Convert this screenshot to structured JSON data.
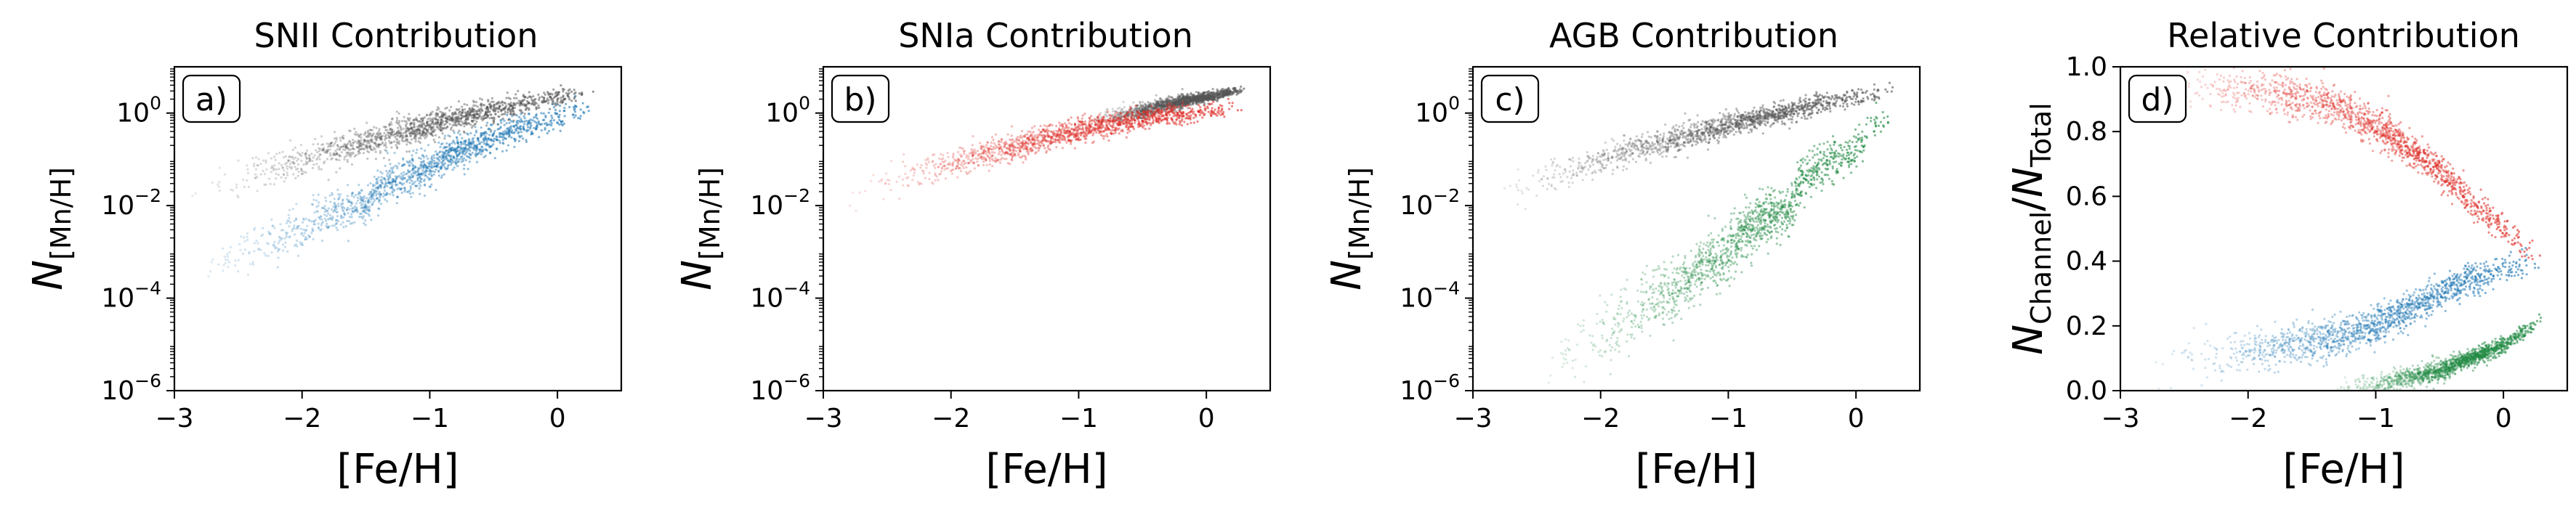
{
  "figure": {
    "panels": [
      {
        "title": "SNII Contribution",
        "label": "a)"
      },
      {
        "title": "SNIa Contribution",
        "label": "b)"
      },
      {
        "title": "AGB Contribution",
        "label": "c)"
      },
      {
        "title": "Relative Contribution",
        "label": "d)"
      }
    ]
  },
  "chart_data": [
    {
      "type": "scatter",
      "title": "SNII Contribution",
      "panel_label": "a)",
      "xlabel": "[Fe/H]",
      "ylabel_tex": {
        "base": "N",
        "sub": "[Mn/H]"
      },
      "xlim": [
        -3,
        0.5
      ],
      "ylim": [
        1e-06,
        10
      ],
      "yscale": "log",
      "xticks": [
        -3,
        -2,
        -1,
        0
      ],
      "xtick_labels": [
        "−3",
        "−2",
        "−1",
        "0"
      ],
      "yticks": [
        1e-06,
        0.0001,
        0.01,
        1
      ],
      "ytick_labels": [
        {
          "base": "10",
          "exp": "−6"
        },
        {
          "base": "10",
          "exp": "−4"
        },
        {
          "base": "10",
          "exp": "−2"
        },
        {
          "base": "10",
          "exp": "0"
        }
      ],
      "series": [
        {
          "role": "total",
          "color": "#555555",
          "x": [
            -2.95,
            -2.5,
            -2.0,
            -1.5,
            -1.0,
            -0.5,
            0.0,
            0.3
          ],
          "y": [
            0.015,
            0.035,
            0.09,
            0.22,
            0.5,
            1.1,
            2.2,
            3.2
          ],
          "scatter": 0.22
        },
        {
          "role": "channel",
          "color": "#1f77b4",
          "x": [
            -2.95,
            -2.5,
            -2.0,
            -1.5,
            -1.0,
            -0.5,
            0.0,
            0.3
          ],
          "y": [
            0.0003,
            0.0008,
            0.003,
            0.011,
            0.06,
            0.25,
            0.8,
            1.3
          ],
          "scatter": 0.3
        }
      ]
    },
    {
      "type": "scatter",
      "title": "SNIa Contribution",
      "panel_label": "b)",
      "xlabel": "[Fe/H]",
      "ylabel_tex": {
        "base": "N",
        "sub": "[Mn/H]"
      },
      "xlim": [
        -3,
        0.5
      ],
      "ylim": [
        1e-06,
        10
      ],
      "yscale": "log",
      "xticks": [
        -3,
        -2,
        -1,
        0
      ],
      "xtick_labels": [
        "−3",
        "−2",
        "−1",
        "0"
      ],
      "yticks": [
        1e-06,
        0.0001,
        0.01,
        1
      ],
      "ytick_labels": [
        {
          "base": "10",
          "exp": "−6"
        },
        {
          "base": "10",
          "exp": "−4"
        },
        {
          "base": "10",
          "exp": "−2"
        },
        {
          "base": "10",
          "exp": "0"
        }
      ],
      "series": [
        {
          "role": "total",
          "color": "#555555",
          "x": [
            -1.0,
            -0.5,
            0.0,
            0.3
          ],
          "y": [
            0.5,
            1.1,
            2.2,
            3.2
          ],
          "scatter": 0.1
        },
        {
          "role": "channel",
          "color": "#de2d26",
          "x": [
            -2.95,
            -2.5,
            -2.0,
            -1.5,
            -1.0,
            -0.5,
            0.0,
            0.3
          ],
          "y": [
            0.012,
            0.03,
            0.075,
            0.18,
            0.42,
            0.75,
            1.1,
            1.4
          ],
          "scatter": 0.2
        }
      ]
    },
    {
      "type": "scatter",
      "title": "AGB Contribution",
      "panel_label": "c)",
      "xlabel": "[Fe/H]",
      "ylabel_tex": {
        "base": "N",
        "sub": "[Mn/H]"
      },
      "xlim": [
        -3,
        0.5
      ],
      "ylim": [
        1e-06,
        10
      ],
      "yscale": "log",
      "xticks": [
        -3,
        -2,
        -1,
        0
      ],
      "xtick_labels": [
        "−3",
        "−2",
        "−1",
        "0"
      ],
      "yticks": [
        1e-06,
        0.0001,
        0.01,
        1
      ],
      "ytick_labels": [
        {
          "base": "10",
          "exp": "−6"
        },
        {
          "base": "10",
          "exp": "−4"
        },
        {
          "base": "10",
          "exp": "−2"
        },
        {
          "base": "10",
          "exp": "0"
        }
      ],
      "series": [
        {
          "role": "total",
          "color": "#555555",
          "x": [
            -2.95,
            -2.5,
            -2.0,
            -1.5,
            -1.0,
            -0.5,
            0.0,
            0.3
          ],
          "y": [
            0.015,
            0.035,
            0.09,
            0.22,
            0.5,
            1.1,
            2.2,
            3.2
          ],
          "scatter": 0.2
        },
        {
          "role": "channel",
          "color": "#238b45",
          "x": [
            -2.6,
            -2.2,
            -1.8,
            -1.4,
            -1.0,
            -0.5,
            0.0,
            0.3
          ],
          "y": [
            1.5e-06,
            6e-06,
            3e-05,
            0.00015,
            0.0008,
            0.008,
            0.15,
            0.8
          ],
          "scatter": 0.45
        }
      ]
    },
    {
      "type": "scatter",
      "title": "Relative Contribution",
      "panel_label": "d)",
      "xlabel": "[Fe/H]",
      "ylabel_tex": {
        "base": "N",
        "sub": "Channel",
        "over": "N",
        "over_sub": "Total"
      },
      "xlim": [
        -3,
        0.5
      ],
      "ylim": [
        0,
        1
      ],
      "yscale": "linear",
      "xticks": [
        -3,
        -2,
        -1,
        0
      ],
      "xtick_labels": [
        "−3",
        "−2",
        "−1",
        "0"
      ],
      "yticks": [
        0.0,
        0.2,
        0.4,
        0.6,
        0.8,
        1.0
      ],
      "ytick_labels": [
        "0.0",
        "0.2",
        "0.4",
        "0.6",
        "0.8",
        "1.0"
      ],
      "series": [
        {
          "role": "SNIa",
          "color": "#de2d26",
          "x": [
            -2.9,
            -2.5,
            -2.0,
            -1.5,
            -1.0,
            -0.5,
            0.0,
            0.3
          ],
          "y": [
            0.92,
            0.92,
            0.93,
            0.9,
            0.82,
            0.68,
            0.5,
            0.4
          ],
          "scatter": 0.04
        },
        {
          "role": "SNII",
          "color": "#1f77b4",
          "x": [
            -2.9,
            -2.5,
            -2.0,
            -1.5,
            -1.0,
            -0.5,
            0.0,
            0.3
          ],
          "y": [
            0.08,
            0.1,
            0.12,
            0.15,
            0.2,
            0.3,
            0.38,
            0.4
          ],
          "scatter": 0.04
        },
        {
          "role": "AGB",
          "color": "#238b45",
          "x": [
            -1.4,
            -1.0,
            -0.5,
            0.0,
            0.3
          ],
          "y": [
            0.0,
            0.02,
            0.06,
            0.14,
            0.22
          ],
          "scatter": 0.02
        }
      ]
    }
  ]
}
